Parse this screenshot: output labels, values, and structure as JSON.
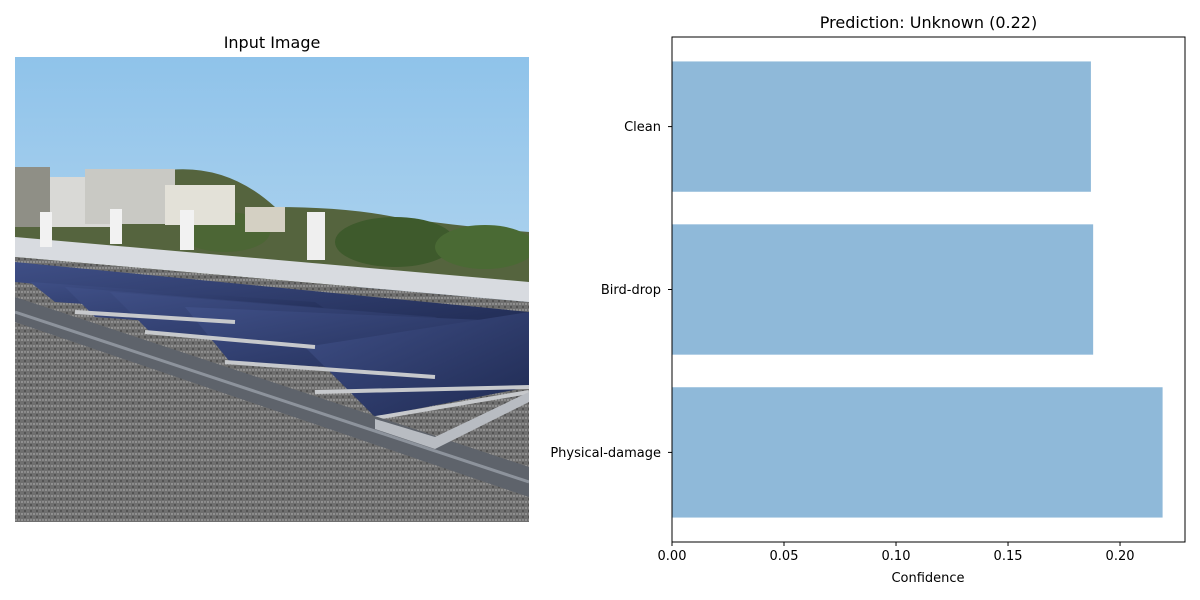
{
  "figure": {
    "left_title": "Input Image",
    "right_title": "Prediction: Unknown (0.22)"
  },
  "chart_data": {
    "type": "bar",
    "orientation": "horizontal",
    "title": "Prediction: Unknown (0.22)",
    "xlabel": "Confidence",
    "ylabel": "",
    "categories": [
      "Physical-damage",
      "Bird-drop",
      "Clean"
    ],
    "values": [
      0.219,
      0.188,
      0.187
    ],
    "xlim": [
      0.0,
      0.229
    ],
    "xticks": [
      "0.00",
      "0.05",
      "0.10",
      "0.15",
      "0.20"
    ],
    "xtick_values": [
      0.0,
      0.05,
      0.1,
      0.15,
      0.2
    ],
    "bar_color": "#8fb9d9",
    "grid": false,
    "legend": false
  }
}
